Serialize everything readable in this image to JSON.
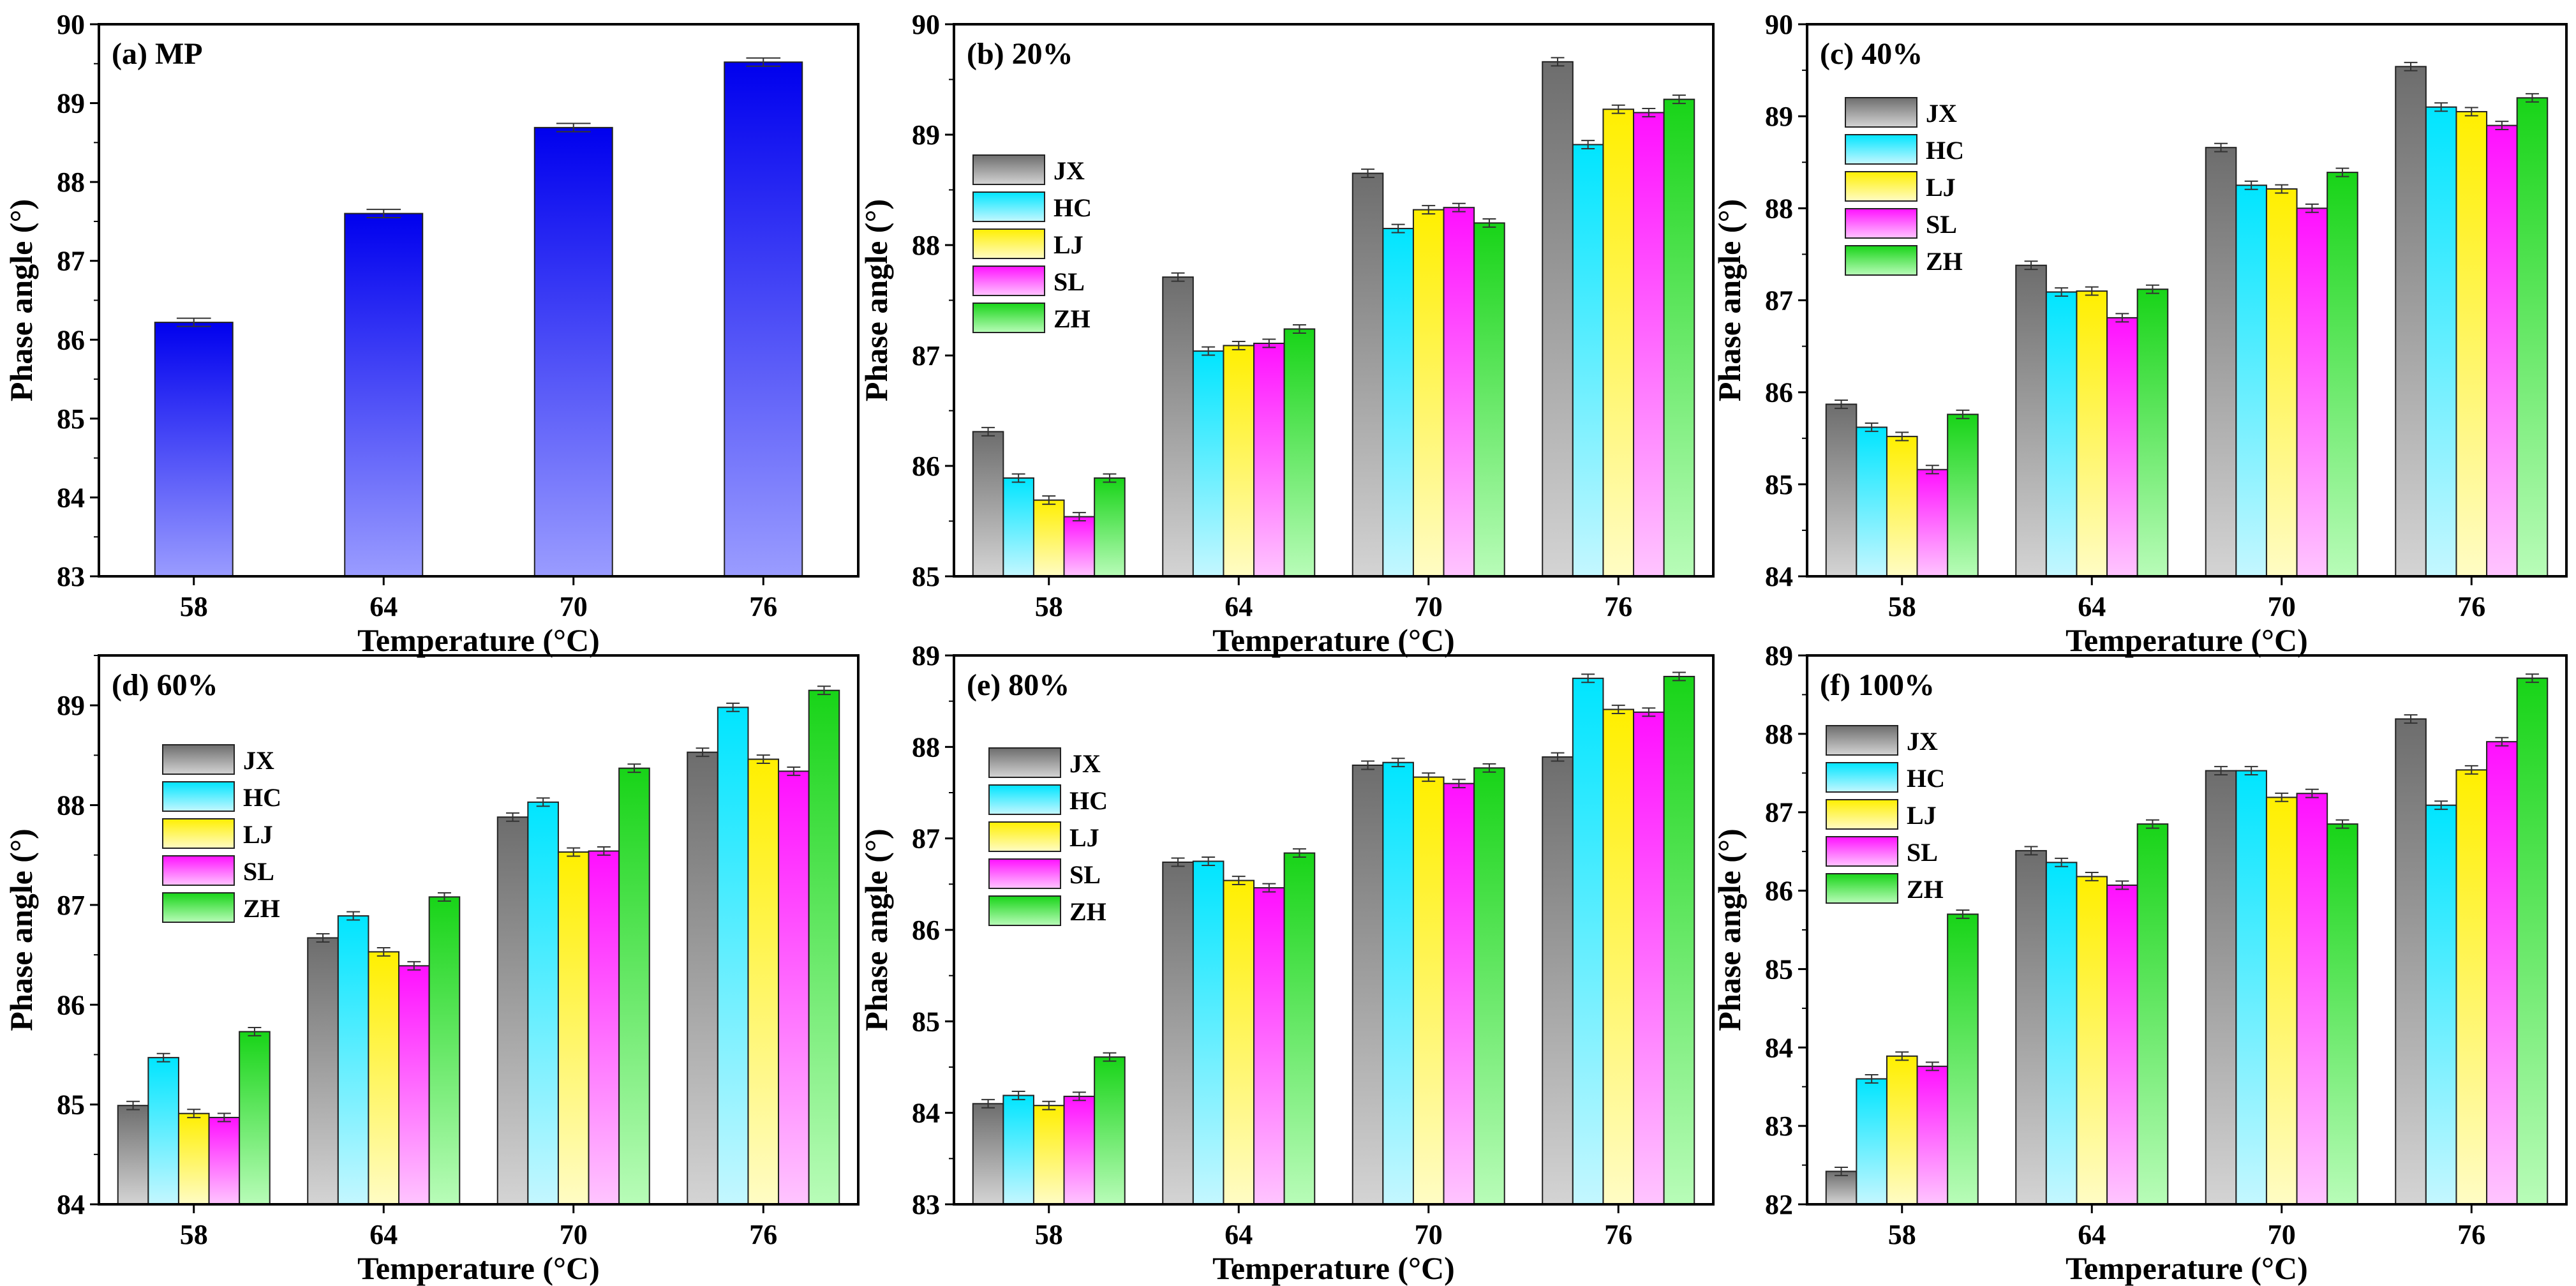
{
  "chart_data": [
    {
      "type": "bar",
      "title": "(a) MP",
      "xlabel": "Temperature (°C)",
      "ylabel": "Phase angle (°)",
      "categories": [
        "58",
        "64",
        "70",
        "76"
      ],
      "ylim": [
        83,
        90
      ],
      "yticks": [
        "83",
        "84",
        "85",
        "86",
        "87",
        "88",
        "89",
        "90"
      ],
      "series": [
        {
          "name": "MP",
          "values": [
            86.22,
            87.6,
            88.69,
            89.52
          ]
        }
      ],
      "legend": false
    },
    {
      "type": "bar",
      "title": "(b) 20%",
      "xlabel": "Temperature (°C)",
      "ylabel": "Phase angle (°)",
      "categories": [
        "58",
        "64",
        "70",
        "76"
      ],
      "ylim": [
        85,
        90
      ],
      "yticks": [
        "85",
        "86",
        "87",
        "88",
        "89",
        "90"
      ],
      "series": [
        {
          "name": "JX",
          "values": [
            86.31,
            87.71,
            88.65,
            89.66
          ]
        },
        {
          "name": "HC",
          "values": [
            85.89,
            87.04,
            88.15,
            88.91
          ]
        },
        {
          "name": "LJ",
          "values": [
            85.69,
            87.09,
            88.32,
            89.23
          ]
        },
        {
          "name": "SL",
          "values": [
            85.54,
            87.11,
            88.34,
            89.2
          ]
        },
        {
          "name": "ZH",
          "values": [
            85.89,
            87.24,
            88.2,
            89.32
          ]
        }
      ],
      "legend": true
    },
    {
      "type": "bar",
      "title": "(c) 40%",
      "xlabel": "Temperature (°C)",
      "ylabel": "Phase angle (°)",
      "categories": [
        "58",
        "64",
        "70",
        "76"
      ],
      "ylim": [
        84,
        90
      ],
      "yticks": [
        "84",
        "85",
        "86",
        "87",
        "88",
        "89",
        "90"
      ],
      "series": [
        {
          "name": "JX",
          "values": [
            85.87,
            87.38,
            88.66,
            89.54
          ]
        },
        {
          "name": "HC",
          "values": [
            85.62,
            87.09,
            88.25,
            89.1
          ]
        },
        {
          "name": "LJ",
          "values": [
            85.52,
            87.1,
            88.21,
            89.05
          ]
        },
        {
          "name": "SL",
          "values": [
            85.16,
            86.81,
            88.0,
            88.9
          ]
        },
        {
          "name": "ZH",
          "values": [
            85.76,
            87.12,
            88.39,
            89.2
          ]
        }
      ],
      "legend": true
    },
    {
      "type": "bar",
      "title": "(d) 60%",
      "xlabel": "Temperature (°C)",
      "ylabel": "Phase angle (°)",
      "categories": [
        "58",
        "64",
        "70",
        "76"
      ],
      "ylim": [
        84,
        89.5
      ],
      "yticks": [
        "84",
        "85",
        "86",
        "87",
        "88",
        "89"
      ],
      "series": [
        {
          "name": "JX",
          "values": [
            84.99,
            86.67,
            87.88,
            88.53
          ]
        },
        {
          "name": "HC",
          "values": [
            85.47,
            86.89,
            88.03,
            88.98
          ]
        },
        {
          "name": "LJ",
          "values": [
            84.91,
            86.53,
            87.53,
            88.46
          ]
        },
        {
          "name": "SL",
          "values": [
            84.87,
            86.39,
            87.54,
            88.34
          ]
        },
        {
          "name": "ZH",
          "values": [
            85.73,
            87.08,
            88.37,
            89.15
          ]
        }
      ],
      "legend": true
    },
    {
      "type": "bar",
      "title": "(e) 80%",
      "xlabel": "Temperature (°C)",
      "ylabel": "Phase angle (°)",
      "categories": [
        "58",
        "64",
        "70",
        "76"
      ],
      "ylim": [
        83,
        89
      ],
      "yticks": [
        "83",
        "84",
        "85",
        "86",
        "87",
        "88",
        "89"
      ],
      "series": [
        {
          "name": "JX",
          "values": [
            84.1,
            86.74,
            87.8,
            87.89
          ]
        },
        {
          "name": "HC",
          "values": [
            84.19,
            86.75,
            87.83,
            88.75
          ]
        },
        {
          "name": "LJ",
          "values": [
            84.08,
            86.54,
            87.67,
            88.41
          ]
        },
        {
          "name": "SL",
          "values": [
            84.18,
            86.46,
            87.6,
            88.38
          ]
        },
        {
          "name": "ZH",
          "values": [
            84.61,
            86.84,
            87.77,
            88.77
          ]
        }
      ],
      "legend": true
    },
    {
      "type": "bar",
      "title": "(f) 100%",
      "xlabel": "Temperature (°C)",
      "ylabel": "Phase angle (°)",
      "categories": [
        "58",
        "64",
        "70",
        "76"
      ],
      "ylim": [
        82,
        89
      ],
      "yticks": [
        "82",
        "83",
        "84",
        "85",
        "86",
        "87",
        "88",
        "89"
      ],
      "series": [
        {
          "name": "JX",
          "values": [
            82.42,
            86.51,
            87.53,
            88.19
          ]
        },
        {
          "name": "HC",
          "values": [
            83.6,
            86.36,
            87.53,
            87.09
          ]
        },
        {
          "name": "LJ",
          "values": [
            83.89,
            86.18,
            87.19,
            87.54
          ]
        },
        {
          "name": "SL",
          "values": [
            83.76,
            86.07,
            87.24,
            87.9
          ]
        },
        {
          "name": "ZH",
          "values": [
            85.7,
            86.85,
            86.85,
            88.71
          ]
        }
      ],
      "legend": true
    }
  ],
  "colors": {
    "MP": [
      "#0000ee",
      "#9a9cff"
    ],
    "JX": [
      "#6d6d6d",
      "#d4d4d4"
    ],
    "HC": [
      "#00e5ff",
      "#c4f7ff"
    ],
    "LJ": [
      "#ffef00",
      "#fffcc4"
    ],
    "SL": [
      "#ff10ff",
      "#ffc4ff"
    ],
    "ZH": [
      "#18d418",
      "#b8fcb8"
    ]
  }
}
